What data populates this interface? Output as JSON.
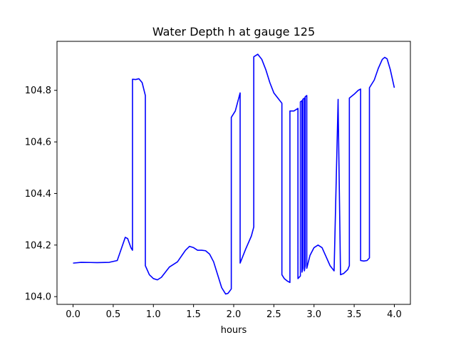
{
  "chart_data": {
    "type": "line",
    "title": "Water Depth h at gauge 125",
    "xlabel": "hours",
    "ylabel": "",
    "xlim": [
      -0.2,
      4.2
    ],
    "ylim": [
      103.97,
      104.99
    ],
    "grid": false,
    "legend": "none",
    "x_ticks": [
      0.0,
      0.5,
      1.0,
      1.5,
      2.0,
      2.5,
      3.0,
      3.5,
      4.0
    ],
    "x_tick_labels": [
      "0.0",
      "0.5",
      "1.0",
      "1.5",
      "2.0",
      "2.5",
      "3.0",
      "3.5",
      "4.0"
    ],
    "y_ticks": [
      104.0,
      104.2,
      104.4,
      104.6,
      104.8
    ],
    "y_tick_labels": [
      "104.0",
      "104.2",
      "104.4",
      "104.6",
      "104.8"
    ],
    "series": [
      {
        "color": "#0000ff",
        "x": [
          0.0,
          0.1,
          0.3,
          0.45,
          0.55,
          0.6,
          0.65,
          0.68,
          0.72,
          0.74,
          0.74,
          0.78,
          0.82,
          0.86,
          0.9,
          0.9,
          0.95,
          1.0,
          1.05,
          1.1,
          1.2,
          1.3,
          1.4,
          1.45,
          1.5,
          1.55,
          1.6,
          1.65,
          1.7,
          1.75,
          1.8,
          1.85,
          1.9,
          1.93,
          1.97,
          1.97,
          2.02,
          2.08,
          2.08,
          2.15,
          2.22,
          2.25,
          2.25,
          2.3,
          2.35,
          2.4,
          2.45,
          2.5,
          2.55,
          2.6,
          2.6,
          2.63,
          2.67,
          2.7,
          2.7,
          2.75,
          2.8,
          2.8,
          2.83,
          2.83,
          2.85,
          2.85,
          2.86,
          2.86,
          2.88,
          2.88,
          2.89,
          2.89,
          2.91,
          2.91,
          2.95,
          3.0,
          3.05,
          3.1,
          3.15,
          3.2,
          3.25,
          3.3,
          3.3,
          3.33,
          3.33,
          3.37,
          3.42,
          3.44,
          3.44,
          3.5,
          3.55,
          3.58,
          3.58,
          3.62,
          3.66,
          3.69,
          3.69,
          3.75,
          3.8,
          3.85,
          3.88,
          3.91,
          3.95,
          4.0
        ],
        "y": [
          104.13,
          104.133,
          104.132,
          104.133,
          104.14,
          104.185,
          104.23,
          104.225,
          104.19,
          104.18,
          104.843,
          104.842,
          104.845,
          104.83,
          104.78,
          104.12,
          104.085,
          104.07,
          104.065,
          104.075,
          104.115,
          104.135,
          104.18,
          104.195,
          104.19,
          104.18,
          104.18,
          104.178,
          104.165,
          104.135,
          104.085,
          104.035,
          104.01,
          104.013,
          104.03,
          104.695,
          104.72,
          104.79,
          104.13,
          104.185,
          104.235,
          104.27,
          104.93,
          104.94,
          104.92,
          104.88,
          104.83,
          104.79,
          104.77,
          104.75,
          104.085,
          104.07,
          104.06,
          104.055,
          104.72,
          104.72,
          104.73,
          104.07,
          104.08,
          104.755,
          104.76,
          104.095,
          104.11,
          104.765,
          104.77,
          104.1,
          104.12,
          104.775,
          104.78,
          104.11,
          104.16,
          104.19,
          104.2,
          104.19,
          104.155,
          104.12,
          104.1,
          104.765,
          104.75,
          104.085,
          104.085,
          104.09,
          104.105,
          104.12,
          104.77,
          104.785,
          104.8,
          104.805,
          104.14,
          104.138,
          104.14,
          104.15,
          104.81,
          104.84,
          104.885,
          104.92,
          104.928,
          104.922,
          104.88,
          104.81
        ]
      }
    ]
  }
}
